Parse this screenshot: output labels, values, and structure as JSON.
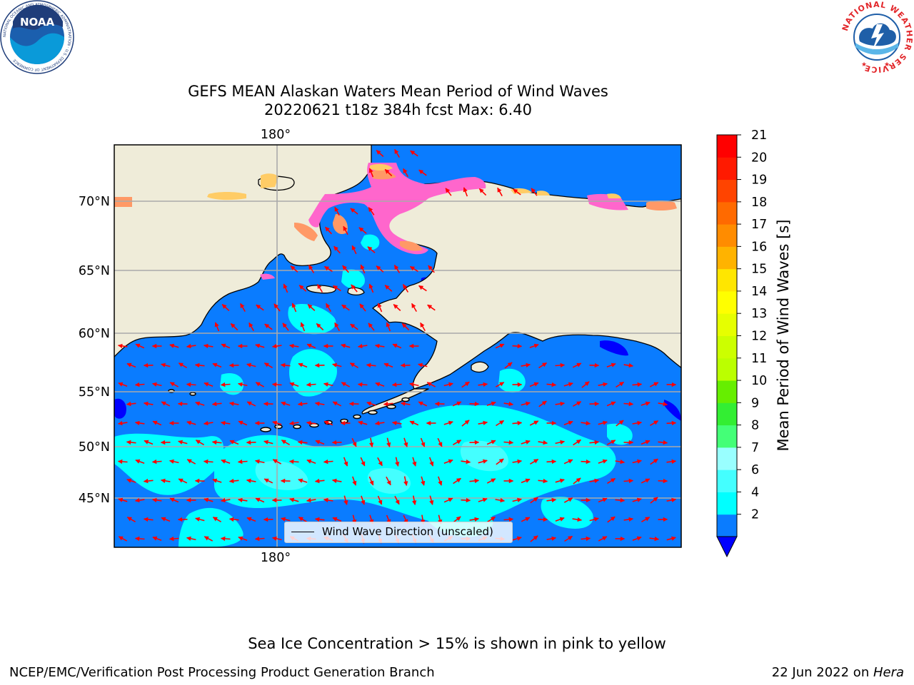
{
  "title": {
    "line1": "GEFS MEAN Alaskan Waters Mean Period of Wind Waves",
    "line2": "20220621 t18z 384h fcst   Max: 6.40"
  },
  "map": {
    "lat_labels": [
      "70°N",
      "65°N",
      "60°N",
      "55°N",
      "50°N",
      "45°N"
    ],
    "lon_label_top": "180°",
    "lon_label_bottom": "180°",
    "legend_label": "Wind Wave Direction (unscaled)",
    "arrow_color": "#ff0000",
    "land_color": "#efecd9",
    "ocean_base_color": "#0a7cff",
    "ice_colors": [
      "#ff66cc",
      "#ff9966",
      "#ffcc66",
      "#ffff66"
    ]
  },
  "colorbar": {
    "title": "Mean Period of Wind Waves [s]",
    "ticks": [
      "21",
      "20",
      "19",
      "18",
      "17",
      "16",
      "15",
      "14",
      "13",
      "12",
      "11",
      "10",
      "9",
      "8",
      "7",
      "6",
      "4",
      "2"
    ],
    "colors_bottom_to_top": [
      "#0a7cff",
      "#00ffff",
      "#44ffff",
      "#99ffff",
      "#44ff77",
      "#33ee33",
      "#66ee00",
      "#bbff00",
      "#ccff00",
      "#e6ff00",
      "#ffff00",
      "#ffe600",
      "#ffb300",
      "#ff8c00",
      "#ff6a00",
      "#ff4400",
      "#ff1a00",
      "#ff0000"
    ],
    "under_color": "#0000ff"
  },
  "footer": {
    "ice_note": "Sea Ice Concentration > 15% is shown in pink to yellow",
    "left": "NCEP/EMC/Verification Post Processing Product Generation Branch",
    "right_date": "22 Jun 2022 on ",
    "right_machine": "Hera"
  },
  "logos": {
    "noaa_text": "NOAA",
    "noaa_ring_text": "NATIONAL OCEANIC AND ATMOSPHERIC ADMINISTRATION · U.S. DEPARTMENT OF COMMERCE",
    "nws_ring_text": "NATIONAL WEATHER SERVICE"
  }
}
